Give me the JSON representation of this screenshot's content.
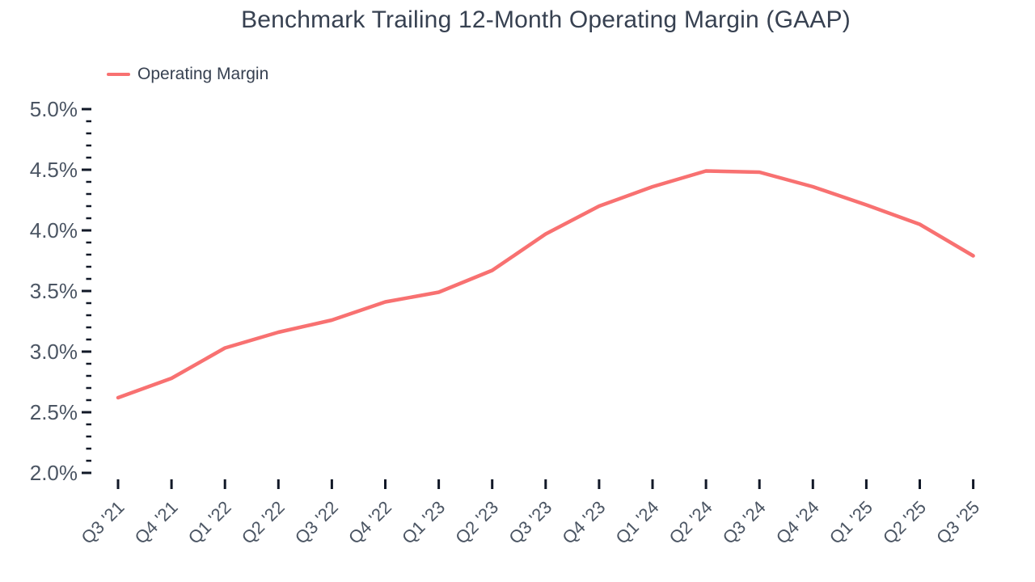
{
  "header": {
    "title": "Benchmark Trailing 12-Month Operating Margin (GAAP)"
  },
  "legend": [
    {
      "label": "Operating Margin",
      "color": "#f87171"
    }
  ],
  "colors": {
    "series": "#f87171",
    "title_text": "#374151",
    "axis_label_text": "#4b5563",
    "tick_mark": "#111827",
    "background": "#ffffff"
  },
  "chart_data": {
    "type": "line",
    "title": "Benchmark Trailing 12-Month Operating Margin (GAAP)",
    "categories": [
      "Q3 '21",
      "Q4 '21",
      "Q1 '22",
      "Q2 '22",
      "Q3 '22",
      "Q4 '22",
      "Q1 '23",
      "Q2 '23",
      "Q3 '23",
      "Q4 '23",
      "Q1 '24",
      "Q2 '24",
      "Q3 '24",
      "Q4 '24",
      "Q1 '25",
      "Q2 '25",
      "Q3 '25"
    ],
    "series": [
      {
        "name": "Operating Margin",
        "color": "#f87171",
        "values": [
          2.62,
          2.78,
          3.03,
          3.16,
          3.26,
          3.41,
          3.49,
          3.67,
          3.97,
          4.2,
          4.36,
          4.49,
          4.48,
          4.36,
          4.21,
          4.05,
          3.79
        ]
      }
    ],
    "xlabel": "",
    "ylabel": "",
    "y_unit": "%",
    "ylim": [
      2.0,
      5.0
    ],
    "y_major_step": 0.5,
    "y_minor_step": 0.1,
    "y_tick_labels": [
      "2.0%",
      "2.5%",
      "3.0%",
      "3.5%",
      "4.0%",
      "4.5%",
      "5.0%"
    ],
    "grid": false,
    "legend_position": "top-left",
    "x_label_rotation": -45
  }
}
